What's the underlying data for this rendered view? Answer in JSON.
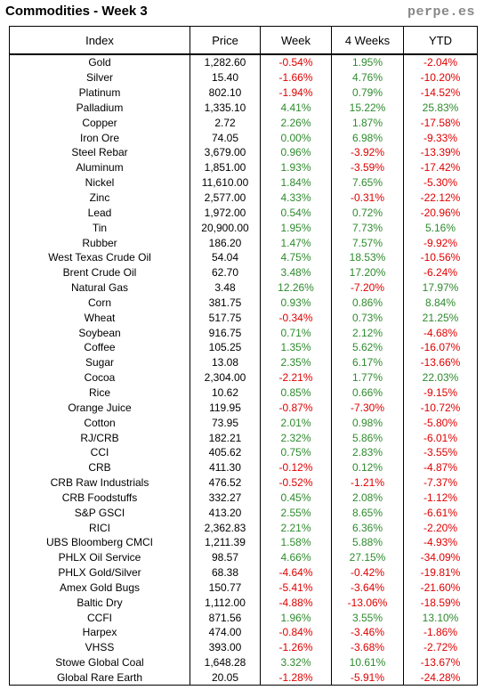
{
  "title": "Commodities - Week 3",
  "site": "perpe.es",
  "columns": [
    "Index",
    "Price",
    "Week",
    "4 Weeks",
    "YTD"
  ],
  "rows": [
    [
      "Gold",
      "1,282.60",
      "-0.54%",
      "1.95%",
      "-2.04%"
    ],
    [
      "Silver",
      "15.40",
      "-1.66%",
      "4.76%",
      "-10.20%"
    ],
    [
      "Platinum",
      "802.10",
      "-1.94%",
      "0.79%",
      "-14.52%"
    ],
    [
      "Palladium",
      "1,335.10",
      "4.41%",
      "15.22%",
      "25.83%"
    ],
    [
      "Copper",
      "2.72",
      "2.26%",
      "1.87%",
      "-17.58%"
    ],
    [
      "Iron Ore",
      "74.05",
      "0.00%",
      "6.98%",
      "-9.33%"
    ],
    [
      "Steel Rebar",
      "3,679.00",
      "0.96%",
      "-3.92%",
      "-13.39%"
    ],
    [
      "Aluminum",
      "1,851.00",
      "1.93%",
      "-3.59%",
      "-17.42%"
    ],
    [
      "Nickel",
      "11,610.00",
      "1.84%",
      "7.65%",
      "-5.30%"
    ],
    [
      "Zinc",
      "2,577.00",
      "4.33%",
      "-0.31%",
      "-22.12%"
    ],
    [
      "Lead",
      "1,972.00",
      "0.54%",
      "0.72%",
      "-20.96%"
    ],
    [
      "Tin",
      "20,900.00",
      "1.95%",
      "7.73%",
      "5.16%"
    ],
    [
      "Rubber",
      "186.20",
      "1.47%",
      "7.57%",
      "-9.92%"
    ],
    [
      "West Texas Crude Oil",
      "54.04",
      "4.75%",
      "18.53%",
      "-10.56%"
    ],
    [
      "Brent Crude Oil",
      "62.70",
      "3.48%",
      "17.20%",
      "-6.24%"
    ],
    [
      "Natural Gas",
      "3.48",
      "12.26%",
      "-7.20%",
      "17.97%"
    ],
    [
      "Corn",
      "381.75",
      "0.93%",
      "0.86%",
      "8.84%"
    ],
    [
      "Wheat",
      "517.75",
      "-0.34%",
      "0.73%",
      "21.25%"
    ],
    [
      "Soybean",
      "916.75",
      "0.71%",
      "2.12%",
      "-4.68%"
    ],
    [
      "Coffee",
      "105.25",
      "1.35%",
      "5.62%",
      "-16.07%"
    ],
    [
      "Sugar",
      "13.08",
      "2.35%",
      "6.17%",
      "-13.66%"
    ],
    [
      "Cocoa",
      "2,304.00",
      "-2.21%",
      "1.77%",
      "22.03%"
    ],
    [
      "Rice",
      "10.62",
      "0.85%",
      "0.66%",
      "-9.15%"
    ],
    [
      "Orange Juice",
      "119.95",
      "-0.87%",
      "-7.30%",
      "-10.72%"
    ],
    [
      "Cotton",
      "73.95",
      "2.01%",
      "0.98%",
      "-5.80%"
    ],
    [
      "RJ/CRB",
      "182.21",
      "2.32%",
      "5.86%",
      "-6.01%"
    ],
    [
      "CCI",
      "405.62",
      "0.75%",
      "2.83%",
      "-3.55%"
    ],
    [
      "CRB",
      "411.30",
      "-0.12%",
      "0.12%",
      "-4.87%"
    ],
    [
      "CRB Raw Industrials",
      "476.52",
      "-0.52%",
      "-1.21%",
      "-7.37%"
    ],
    [
      "CRB Foodstuffs",
      "332.27",
      "0.45%",
      "2.08%",
      "-1.12%"
    ],
    [
      "S&P GSCI",
      "413.20",
      "2.55%",
      "8.65%",
      "-6.61%"
    ],
    [
      "RICI",
      "2,362.83",
      "2.21%",
      "6.36%",
      "-2.20%"
    ],
    [
      "UBS Bloomberg CMCI",
      "1,211.39",
      "1.58%",
      "5.88%",
      "-4.93%"
    ],
    [
      "PHLX Oil Service",
      "98.57",
      "4.66%",
      "27.15%",
      "-34.09%"
    ],
    [
      "PHLX Gold/Silver",
      "68.38",
      "-4.64%",
      "-0.42%",
      "-19.81%"
    ],
    [
      "Amex Gold Bugs",
      "150.77",
      "-5.41%",
      "-3.64%",
      "-21.60%"
    ],
    [
      "Baltic Dry",
      "1,112.00",
      "-4.88%",
      "-13.06%",
      "-18.59%"
    ],
    [
      "CCFI",
      "871.56",
      "1.96%",
      "3.55%",
      "13.10%"
    ],
    [
      "Harpex",
      "474.00",
      "-0.84%",
      "-3.46%",
      "-1.86%"
    ],
    [
      "VHSS",
      "393.00",
      "-1.26%",
      "-3.68%",
      "-2.72%"
    ],
    [
      "Stowe Global Coal",
      "1,648.28",
      "3.32%",
      "10.61%",
      "-13.67%"
    ],
    [
      "Global Rare Earth",
      "20.05",
      "-1.28%",
      "-5.91%",
      "-24.28%"
    ]
  ],
  "colors": {
    "positive": "#2e8b2e",
    "negative": "#e00000"
  }
}
